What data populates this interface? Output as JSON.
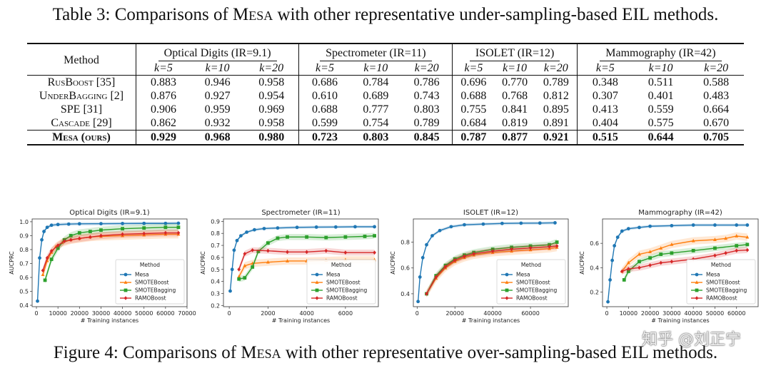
{
  "table": {
    "caption_prefix": "Table 3: Comparisons of ",
    "caption_mesa": "Mesa",
    "caption_suffix": " with other representative under-sampling-based EIL methods.",
    "method_header": "Method",
    "groups": [
      "Optical Digits (IR=9.1)",
      "Spectrometer (IR=11)",
      "ISOLET (IR=12)",
      "Mammography (IR=42)"
    ],
    "k_labels": [
      "k=5",
      "k=10",
      "k=20"
    ],
    "rows": [
      {
        "method": "RusBoost [35]",
        "values": [
          "0.883",
          "0.946",
          "0.958",
          "0.686",
          "0.784",
          "0.786",
          "0.696",
          "0.770",
          "0.789",
          "0.348",
          "0.511",
          "0.588"
        ]
      },
      {
        "method": "UnderBagging [2]",
        "values": [
          "0.876",
          "0.927",
          "0.954",
          "0.610",
          "0.689",
          "0.743",
          "0.688",
          "0.768",
          "0.812",
          "0.307",
          "0.401",
          "0.483"
        ]
      },
      {
        "method": "SPE [31]",
        "values": [
          "0.906",
          "0.959",
          "0.969",
          "0.688",
          "0.777",
          "0.803",
          "0.755",
          "0.841",
          "0.895",
          "0.413",
          "0.559",
          "0.664"
        ]
      },
      {
        "method": "Cascade [29]",
        "values": [
          "0.862",
          "0.932",
          "0.958",
          "0.599",
          "0.754",
          "0.789",
          "0.684",
          "0.819",
          "0.891",
          "0.404",
          "0.575",
          "0.670"
        ]
      }
    ],
    "ours": {
      "method": "Mesa (ours)",
      "values": [
        "0.929",
        "0.968",
        "0.980",
        "0.723",
        "0.803",
        "0.845",
        "0.787",
        "0.877",
        "0.921",
        "0.515",
        "0.644",
        "0.705"
      ]
    }
  },
  "figure": {
    "caption_prefix": "Figure 4: Comparisons of ",
    "caption_mesa": "Mesa",
    "caption_suffix": " with other representative over-sampling-based EIL methods.",
    "watermark": "知乎 @刘正宁"
  },
  "colors": {
    "Mesa": "#1f77b4",
    "SMOTEBoost": "#ff7f0e",
    "SMOTEBagging": "#2ca02c",
    "RAMOBoost": "#d62728"
  },
  "chart_data": [
    {
      "type": "line",
      "title": "Optical Digits (IR=9.1)",
      "xlabel": "# Training instances",
      "ylabel": "AUCPRC",
      "xlim": [
        -2000,
        70000
      ],
      "ylim": [
        0.39,
        1.02
      ],
      "xticks": [
        0,
        10000,
        20000,
        30000,
        40000,
        50000,
        60000,
        70000
      ],
      "xtick_labels": [
        "0",
        "10000",
        "20000",
        "30000",
        "40000",
        "50000",
        "60000",
        "70000"
      ],
      "yticks": [
        0.4,
        0.5,
        0.6,
        0.7,
        0.8,
        0.9,
        1.0
      ],
      "ytick_labels": [
        "0.4",
        "0.5",
        "0.6",
        "0.7",
        "0.8",
        "0.9",
        "1.0"
      ],
      "legend": {
        "title": "Method",
        "position": "bottom-right"
      },
      "series": [
        {
          "name": "Mesa",
          "x": [
            500,
            1500,
            2500,
            3500,
            5000,
            7000,
            10000,
            15000,
            20000,
            30000,
            40000,
            50000,
            60000,
            66000
          ],
          "y": [
            0.43,
            0.74,
            0.87,
            0.93,
            0.96,
            0.975,
            0.98,
            0.983,
            0.985,
            0.986,
            0.987,
            0.988,
            0.988,
            0.989
          ]
        },
        {
          "name": "SMOTEBoost",
          "x": [
            3000,
            5000,
            7000,
            9000,
            12000,
            16000,
            20000,
            25000,
            30000,
            40000,
            50000,
            60000,
            66000
          ],
          "y": [
            0.62,
            0.72,
            0.78,
            0.82,
            0.85,
            0.87,
            0.88,
            0.89,
            0.895,
            0.9,
            0.905,
            0.91,
            0.91
          ]
        },
        {
          "name": "SMOTEBagging",
          "x": [
            4000,
            7000,
            10000,
            13000,
            16000,
            20000,
            25000,
            30000,
            40000,
            50000,
            60000,
            66000
          ],
          "y": [
            0.58,
            0.73,
            0.81,
            0.87,
            0.9,
            0.92,
            0.93,
            0.94,
            0.95,
            0.955,
            0.96,
            0.96
          ]
        },
        {
          "name": "RAMOBoost",
          "x": [
            3000,
            5000,
            7000,
            10000,
            13000,
            16000,
            20000,
            25000,
            30000,
            40000,
            50000,
            60000,
            66000
          ],
          "y": [
            0.65,
            0.74,
            0.79,
            0.83,
            0.86,
            0.87,
            0.88,
            0.89,
            0.9,
            0.91,
            0.915,
            0.92,
            0.92
          ]
        }
      ]
    },
    {
      "type": "line",
      "title": "Spectrometer (IR=11)",
      "xlabel": "# Training instances",
      "ylabel": "AUCPRC",
      "xlim": [
        -300,
        7700
      ],
      "ylim": [
        0.19,
        0.92
      ],
      "xticks": [
        0,
        2000,
        4000,
        6000
      ],
      "xtick_labels": [
        "0",
        "2000",
        "4000",
        "6000"
      ],
      "yticks": [
        0.2,
        0.3,
        0.4,
        0.5,
        0.6,
        0.7,
        0.8,
        0.9
      ],
      "ytick_labels": [
        "0.2",
        "0.3",
        "0.4",
        "0.5",
        "0.6",
        "0.7",
        "0.8",
        "0.9"
      ],
      "legend": {
        "title": "Method",
        "position": "bottom-right"
      },
      "series": [
        {
          "name": "Mesa",
          "x": [
            50,
            150,
            250,
            400,
            600,
            900,
            1300,
            1800,
            2500,
            3500,
            4500,
            5500,
            6500,
            7500
          ],
          "y": [
            0.32,
            0.5,
            0.66,
            0.74,
            0.78,
            0.81,
            0.83,
            0.84,
            0.845,
            0.85,
            0.852,
            0.853,
            0.855,
            0.855
          ]
        },
        {
          "name": "SMOTEBoost",
          "x": [
            500,
            800,
            1200,
            2000,
            3000,
            4000,
            5000,
            6000,
            7500
          ],
          "y": [
            0.44,
            0.53,
            0.55,
            0.56,
            0.57,
            0.57,
            0.575,
            0.58,
            0.58
          ]
        },
        {
          "name": "SMOTEBagging",
          "x": [
            500,
            800,
            1200,
            1500,
            2000,
            2500,
            3000,
            4000,
            5000,
            6000,
            7000,
            7500
          ],
          "y": [
            0.42,
            0.43,
            0.52,
            0.65,
            0.72,
            0.76,
            0.77,
            0.77,
            0.765,
            0.77,
            0.775,
            0.78
          ]
        },
        {
          "name": "RAMOBoost",
          "x": [
            500,
            800,
            1200,
            2000,
            3000,
            4000,
            5000,
            6000,
            7500
          ],
          "y": [
            0.5,
            0.63,
            0.66,
            0.655,
            0.645,
            0.645,
            0.655,
            0.64,
            0.64
          ]
        }
      ]
    },
    {
      "type": "line",
      "title": "ISOLET (IR=12)",
      "xlabel": "# Training instances",
      "ylabel": "AUCPRC",
      "xlim": [
        -2000,
        80000
      ],
      "ylim": [
        0.3,
        0.98
      ],
      "xticks": [
        0,
        20000,
        40000,
        60000
      ],
      "xtick_labels": [
        "0",
        "20000",
        "40000",
        "60000"
      ],
      "yticks": [
        0.4,
        0.6,
        0.8
      ],
      "ytick_labels": [
        "0.4",
        "0.6",
        "0.8"
      ],
      "legend": {
        "title": "Method",
        "position": "bottom-right"
      },
      "series": [
        {
          "name": "Mesa",
          "x": [
            500,
            1500,
            3000,
            5000,
            8000,
            12000,
            18000,
            25000,
            35000,
            45000,
            55000,
            65000,
            73000
          ],
          "y": [
            0.34,
            0.53,
            0.68,
            0.78,
            0.85,
            0.89,
            0.92,
            0.935,
            0.94,
            0.945,
            0.947,
            0.948,
            0.95
          ]
        },
        {
          "name": "SMOTEBoost",
          "x": [
            5000,
            10000,
            15000,
            20000,
            25000,
            30000,
            40000,
            50000,
            60000,
            70000,
            74000
          ],
          "y": [
            0.4,
            0.52,
            0.6,
            0.65,
            0.68,
            0.7,
            0.72,
            0.73,
            0.74,
            0.75,
            0.76
          ]
        },
        {
          "name": "SMOTEBagging",
          "x": [
            5000,
            10000,
            15000,
            20000,
            25000,
            30000,
            40000,
            50000,
            60000,
            70000,
            74000
          ],
          "y": [
            0.4,
            0.54,
            0.62,
            0.67,
            0.7,
            0.72,
            0.745,
            0.76,
            0.77,
            0.78,
            0.8
          ]
        },
        {
          "name": "RAMOBoost",
          "x": [
            5000,
            10000,
            15000,
            20000,
            25000,
            30000,
            40000,
            50000,
            60000,
            70000,
            74000
          ],
          "y": [
            0.4,
            0.53,
            0.61,
            0.66,
            0.69,
            0.71,
            0.73,
            0.745,
            0.755,
            0.765,
            0.77
          ]
        }
      ]
    },
    {
      "type": "line",
      "title": "Mammography (IR=42)",
      "xlabel": "# Training instances",
      "ylabel": "AUCPRC",
      "xlim": [
        -2000,
        70000
      ],
      "ylim": [
        0.08,
        0.8
      ],
      "xticks": [
        0,
        10000,
        20000,
        30000,
        40000,
        50000,
        60000
      ],
      "xtick_labels": [
        "0",
        "10000",
        "20000",
        "30000",
        "40000",
        "50000",
        "60000"
      ],
      "yticks": [
        0.2,
        0.4,
        0.6
      ],
      "ytick_labels": [
        "0.2",
        "0.4",
        "0.6"
      ],
      "legend": {
        "title": "Method",
        "position": "bottom-right"
      },
      "series": [
        {
          "name": "Mesa",
          "x": [
            500,
            1500,
            2500,
            3500,
            5000,
            7000,
            10000,
            15000,
            20000,
            30000,
            40000,
            50000,
            60000,
            65000
          ],
          "y": [
            0.12,
            0.3,
            0.46,
            0.58,
            0.65,
            0.7,
            0.72,
            0.73,
            0.74,
            0.745,
            0.75,
            0.75,
            0.75,
            0.75
          ]
        },
        {
          "name": "SMOTEBoost",
          "x": [
            7000,
            10000,
            15000,
            20000,
            25000,
            30000,
            40000,
            50000,
            55000,
            60000,
            65000
          ],
          "y": [
            0.37,
            0.44,
            0.51,
            0.53,
            0.56,
            0.59,
            0.62,
            0.63,
            0.64,
            0.66,
            0.65
          ]
        },
        {
          "name": "SMOTEBagging",
          "x": [
            8000,
            10000,
            15000,
            20000,
            25000,
            30000,
            40000,
            50000,
            60000,
            65000
          ],
          "y": [
            0.3,
            0.37,
            0.45,
            0.48,
            0.51,
            0.52,
            0.54,
            0.56,
            0.58,
            0.59
          ]
        },
        {
          "name": "RAMOBoost",
          "x": [
            7000,
            10000,
            15000,
            20000,
            25000,
            30000,
            40000,
            50000,
            55000,
            60000,
            65000
          ],
          "y": [
            0.37,
            0.39,
            0.4,
            0.42,
            0.44,
            0.45,
            0.47,
            0.5,
            0.52,
            0.54,
            0.545
          ]
        }
      ]
    }
  ]
}
